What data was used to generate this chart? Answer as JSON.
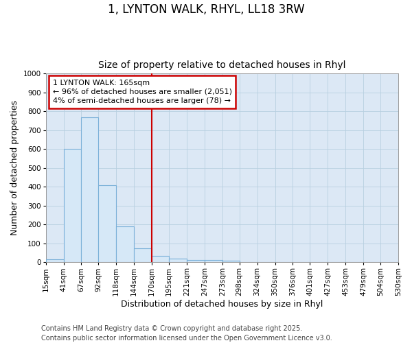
{
  "title_line1": "1, LYNTON WALK, RHYL, LL18 3RW",
  "title_line2": "Size of property relative to detached houses in Rhyl",
  "xlabel": "Distribution of detached houses by size in Rhyl",
  "ylabel": "Number of detached properties",
  "bin_labels": [
    "15sqm",
    "41sqm",
    "67sqm",
    "92sqm",
    "118sqm",
    "144sqm",
    "170sqm",
    "195sqm",
    "221sqm",
    "247sqm",
    "273sqm",
    "298sqm",
    "324sqm",
    "350sqm",
    "376sqm",
    "401sqm",
    "427sqm",
    "453sqm",
    "479sqm",
    "504sqm",
    "530sqm"
  ],
  "bin_edges": [
    15,
    41,
    67,
    92,
    118,
    144,
    170,
    195,
    221,
    247,
    273,
    298,
    324,
    350,
    376,
    401,
    427,
    453,
    479,
    504,
    530
  ],
  "bar_heights": [
    15,
    600,
    770,
    410,
    190,
    75,
    35,
    18,
    12,
    12,
    7,
    3,
    0,
    0,
    0,
    0,
    0,
    0,
    0,
    0
  ],
  "bar_color": "#d6e8f7",
  "bar_edge_color": "#7ab0d8",
  "vline_x": 170,
  "vline_color": "#cc0000",
  "annotation_line1": "1 LYNTON WALK: 165sqm",
  "annotation_line2": "← 96% of detached houses are smaller (2,051)",
  "annotation_line3": "4% of semi-detached houses are larger (78) →",
  "annotation_box_edgecolor": "#cc0000",
  "annotation_bg_color": "#ffffff",
  "ylim": [
    0,
    1000
  ],
  "yticks": [
    0,
    100,
    200,
    300,
    400,
    500,
    600,
    700,
    800,
    900,
    1000
  ],
  "grid_color": "#b8cfe0",
  "bg_color": "#dce8f5",
  "fig_bg_color": "#ffffff",
  "footer_text": "Contains HM Land Registry data © Crown copyright and database right 2025.\nContains public sector information licensed under the Open Government Licence v3.0.",
  "title1_fontsize": 12,
  "title2_fontsize": 10,
  "axis_label_fontsize": 9,
  "tick_fontsize": 7.5,
  "footer_fontsize": 7,
  "annot_fontsize": 8
}
